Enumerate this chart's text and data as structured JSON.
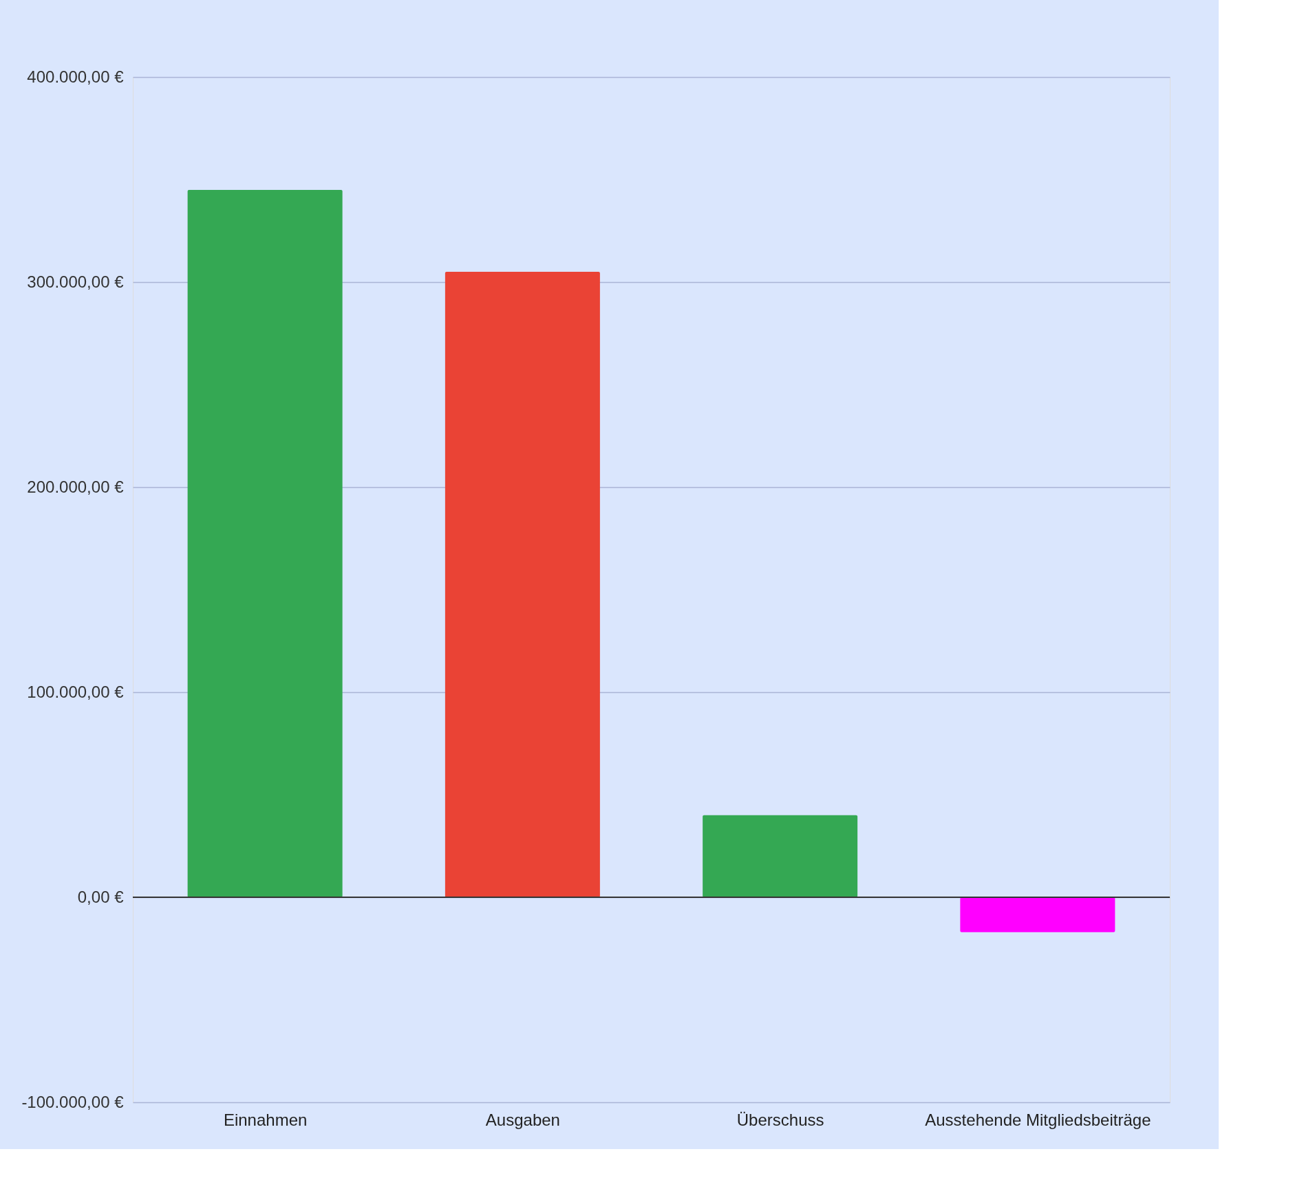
{
  "chart_data": {
    "type": "bar",
    "categories": [
      "Einnahmen",
      "Ausgaben",
      "Überschuss",
      "Ausstehende Mitgliedsbeiträge"
    ],
    "values": [
      345000,
      305000,
      40000,
      -17000
    ],
    "colors": [
      "#34a853",
      "#ea4335",
      "#34a853",
      "#ff00ff"
    ],
    "ylim": [
      -100000,
      400000
    ],
    "yticks": [
      {
        "value": -100000,
        "label": "-100.000,00 €"
      },
      {
        "value": 0,
        "label": "0,00 €"
      },
      {
        "value": 100000,
        "label": "100.000,00 €"
      },
      {
        "value": 200000,
        "label": "200.000,00 €"
      },
      {
        "value": 300000,
        "label": "300.000,00 €"
      },
      {
        "value": 400000,
        "label": "400.000,00 €"
      }
    ],
    "ref_lines": [
      {
        "axis": "y",
        "value": 0,
        "color": "#333333"
      }
    ],
    "grid": "y"
  }
}
